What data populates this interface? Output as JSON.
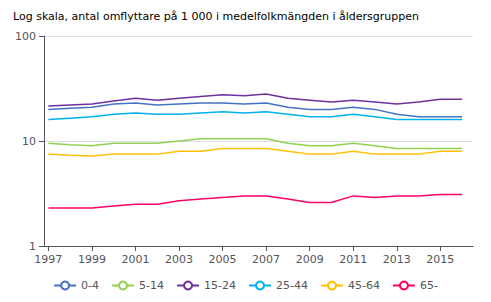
{
  "chart_data": {
    "type": "line",
    "title": "Log skala, antal omflyttare på 1 000 i medelfolkmängden i åldersgruppen",
    "x": [
      1997,
      1998,
      1999,
      2000,
      2001,
      2002,
      2003,
      2004,
      2005,
      2006,
      2007,
      2008,
      2009,
      2010,
      2011,
      2012,
      2013,
      2014,
      2015,
      2016
    ],
    "series": [
      {
        "name": "0-4",
        "color": "#4472c4",
        "values": [
          20.0,
          20.5,
          21.0,
          22.5,
          23.0,
          22.0,
          22.5,
          23.0,
          23.0,
          22.5,
          23.0,
          21.0,
          20.0,
          20.0,
          21.0,
          20.0,
          18.0,
          17.0,
          17.0,
          17.0
        ]
      },
      {
        "name": "5-14",
        "color": "#92d050",
        "values": [
          9.5,
          9.2,
          9.0,
          9.5,
          9.5,
          9.5,
          10.0,
          10.5,
          10.5,
          10.5,
          10.5,
          9.5,
          9.0,
          9.0,
          9.5,
          9.0,
          8.5,
          8.5,
          8.5,
          8.5
        ]
      },
      {
        "name": "15-24",
        "color": "#7030a0",
        "values": [
          21.5,
          22.0,
          22.5,
          24.0,
          25.5,
          24.5,
          25.5,
          26.5,
          27.5,
          27.0,
          28.0,
          25.5,
          24.5,
          23.5,
          24.5,
          23.5,
          22.5,
          23.5,
          25.0,
          25.0
        ]
      },
      {
        "name": "25-44",
        "color": "#00b0f0",
        "values": [
          16.0,
          16.5,
          17.0,
          18.0,
          18.5,
          18.0,
          18.0,
          18.5,
          19.0,
          18.5,
          19.0,
          18.0,
          17.0,
          17.0,
          18.0,
          17.0,
          16.0,
          16.0,
          16.0,
          16.0
        ]
      },
      {
        "name": "45-64",
        "color": "#ffc000",
        "values": [
          7.5,
          7.3,
          7.2,
          7.5,
          7.5,
          7.5,
          8.0,
          8.0,
          8.5,
          8.5,
          8.5,
          8.0,
          7.5,
          7.5,
          8.0,
          7.5,
          7.5,
          7.5,
          8.0,
          8.0
        ]
      },
      {
        "name": "65-",
        "color": "#ff0066",
        "values": [
          2.3,
          2.3,
          2.3,
          2.4,
          2.5,
          2.5,
          2.7,
          2.8,
          2.9,
          3.0,
          3.0,
          2.8,
          2.6,
          2.6,
          3.0,
          2.9,
          3.0,
          3.0,
          3.1,
          3.1
        ]
      }
    ],
    "xlim": [
      1996.8,
      2016.5
    ],
    "xticks": [
      1997,
      1999,
      2001,
      2003,
      2005,
      2007,
      2009,
      2011,
      2013,
      2015
    ],
    "ylim": [
      1,
      100
    ],
    "yticks": [
      1,
      10,
      100
    ],
    "log": "y",
    "grid": true,
    "legend": "bottom"
  }
}
